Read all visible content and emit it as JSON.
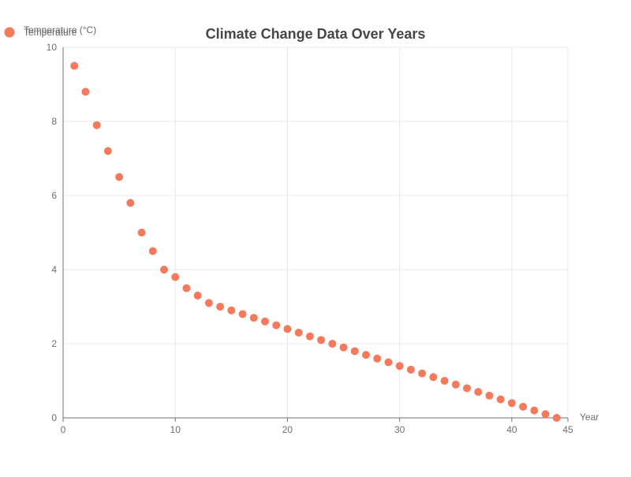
{
  "chart_data": {
    "type": "scatter",
    "title": "Climate Change Data Over Years",
    "xlabel": "Year",
    "ylabel": "Temperature (°C)",
    "xlim": [
      0,
      45
    ],
    "ylim": [
      0,
      10
    ],
    "x_ticks": [
      "0",
      "10",
      "20",
      "30",
      "40",
      "45"
    ],
    "y_ticks": [
      "0",
      "2",
      "4",
      "6",
      "8",
      "10"
    ],
    "grid": true,
    "legend_position": "top-left",
    "colors": {
      "series": "#f5795b",
      "grid": "#e6e8ef",
      "axis": "#6e7079"
    },
    "series": [
      {
        "name": "Temperature",
        "x": [
          1,
          2,
          3,
          4,
          5,
          6,
          7,
          8,
          9,
          10,
          11,
          12,
          13,
          14,
          15,
          16,
          17,
          18,
          19,
          20,
          21,
          22,
          23,
          24,
          25,
          26,
          27,
          28,
          29,
          30,
          31,
          32,
          33,
          34,
          35,
          36,
          37,
          38,
          39,
          40,
          41,
          42,
          43,
          44
        ],
        "y": [
          9.5,
          8.8,
          7.9,
          7.2,
          6.5,
          5.8,
          5.0,
          4.5,
          4.0,
          3.8,
          3.5,
          3.3,
          3.1,
          3.0,
          2.9,
          2.8,
          2.7,
          2.6,
          2.5,
          2.4,
          2.3,
          2.2,
          2.1,
          2.0,
          1.9,
          1.8,
          1.7,
          1.6,
          1.5,
          1.4,
          1.3,
          1.2,
          1.1,
          1.0,
          0.9,
          0.8,
          0.7,
          0.6,
          0.5,
          0.4,
          0.3,
          0.2,
          0.1,
          0.0
        ]
      }
    ]
  }
}
